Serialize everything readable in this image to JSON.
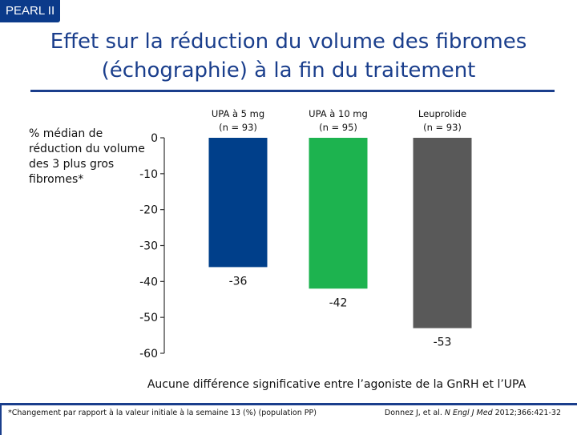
{
  "badge": "PEARL II",
  "title_line1": "Effet sur la réduction du volume des fibromes",
  "title_line2": "(échographie) à la fin du traitement",
  "ylabel": "% médian de réduction du volume des 3 plus gros fibromes*",
  "note": "Aucune différence significative entre l’agoniste de la GnRH et l’UPA",
  "footnote": "*Changement par rapport à la valeur initiale à la semaine 13 (%) (population PP)",
  "citation_authors": "Donnez J, et al. ",
  "citation_journal": "N Engl J Med",
  "citation_rest": " 2012;366:421-32",
  "chart_data": {
    "type": "bar",
    "categories": [
      "UPA à 5 mg\n(n = 93)",
      "UPA à 10 mg\n(n = 95)",
      "Leuprolide\n(n = 93)"
    ],
    "values": [
      -36,
      -42,
      -53
    ],
    "value_labels": [
      "-36",
      "-42",
      "-53"
    ],
    "colors": [
      "#003f8a",
      "#1db34f",
      "#595959"
    ],
    "ylim": [
      -60,
      0
    ],
    "yticks": [
      0,
      -10,
      -20,
      -30,
      -40,
      -50,
      -60
    ],
    "ylabel": "% médian de réduction du volume des 3 plus gros fibromes*",
    "xlabel": ""
  }
}
